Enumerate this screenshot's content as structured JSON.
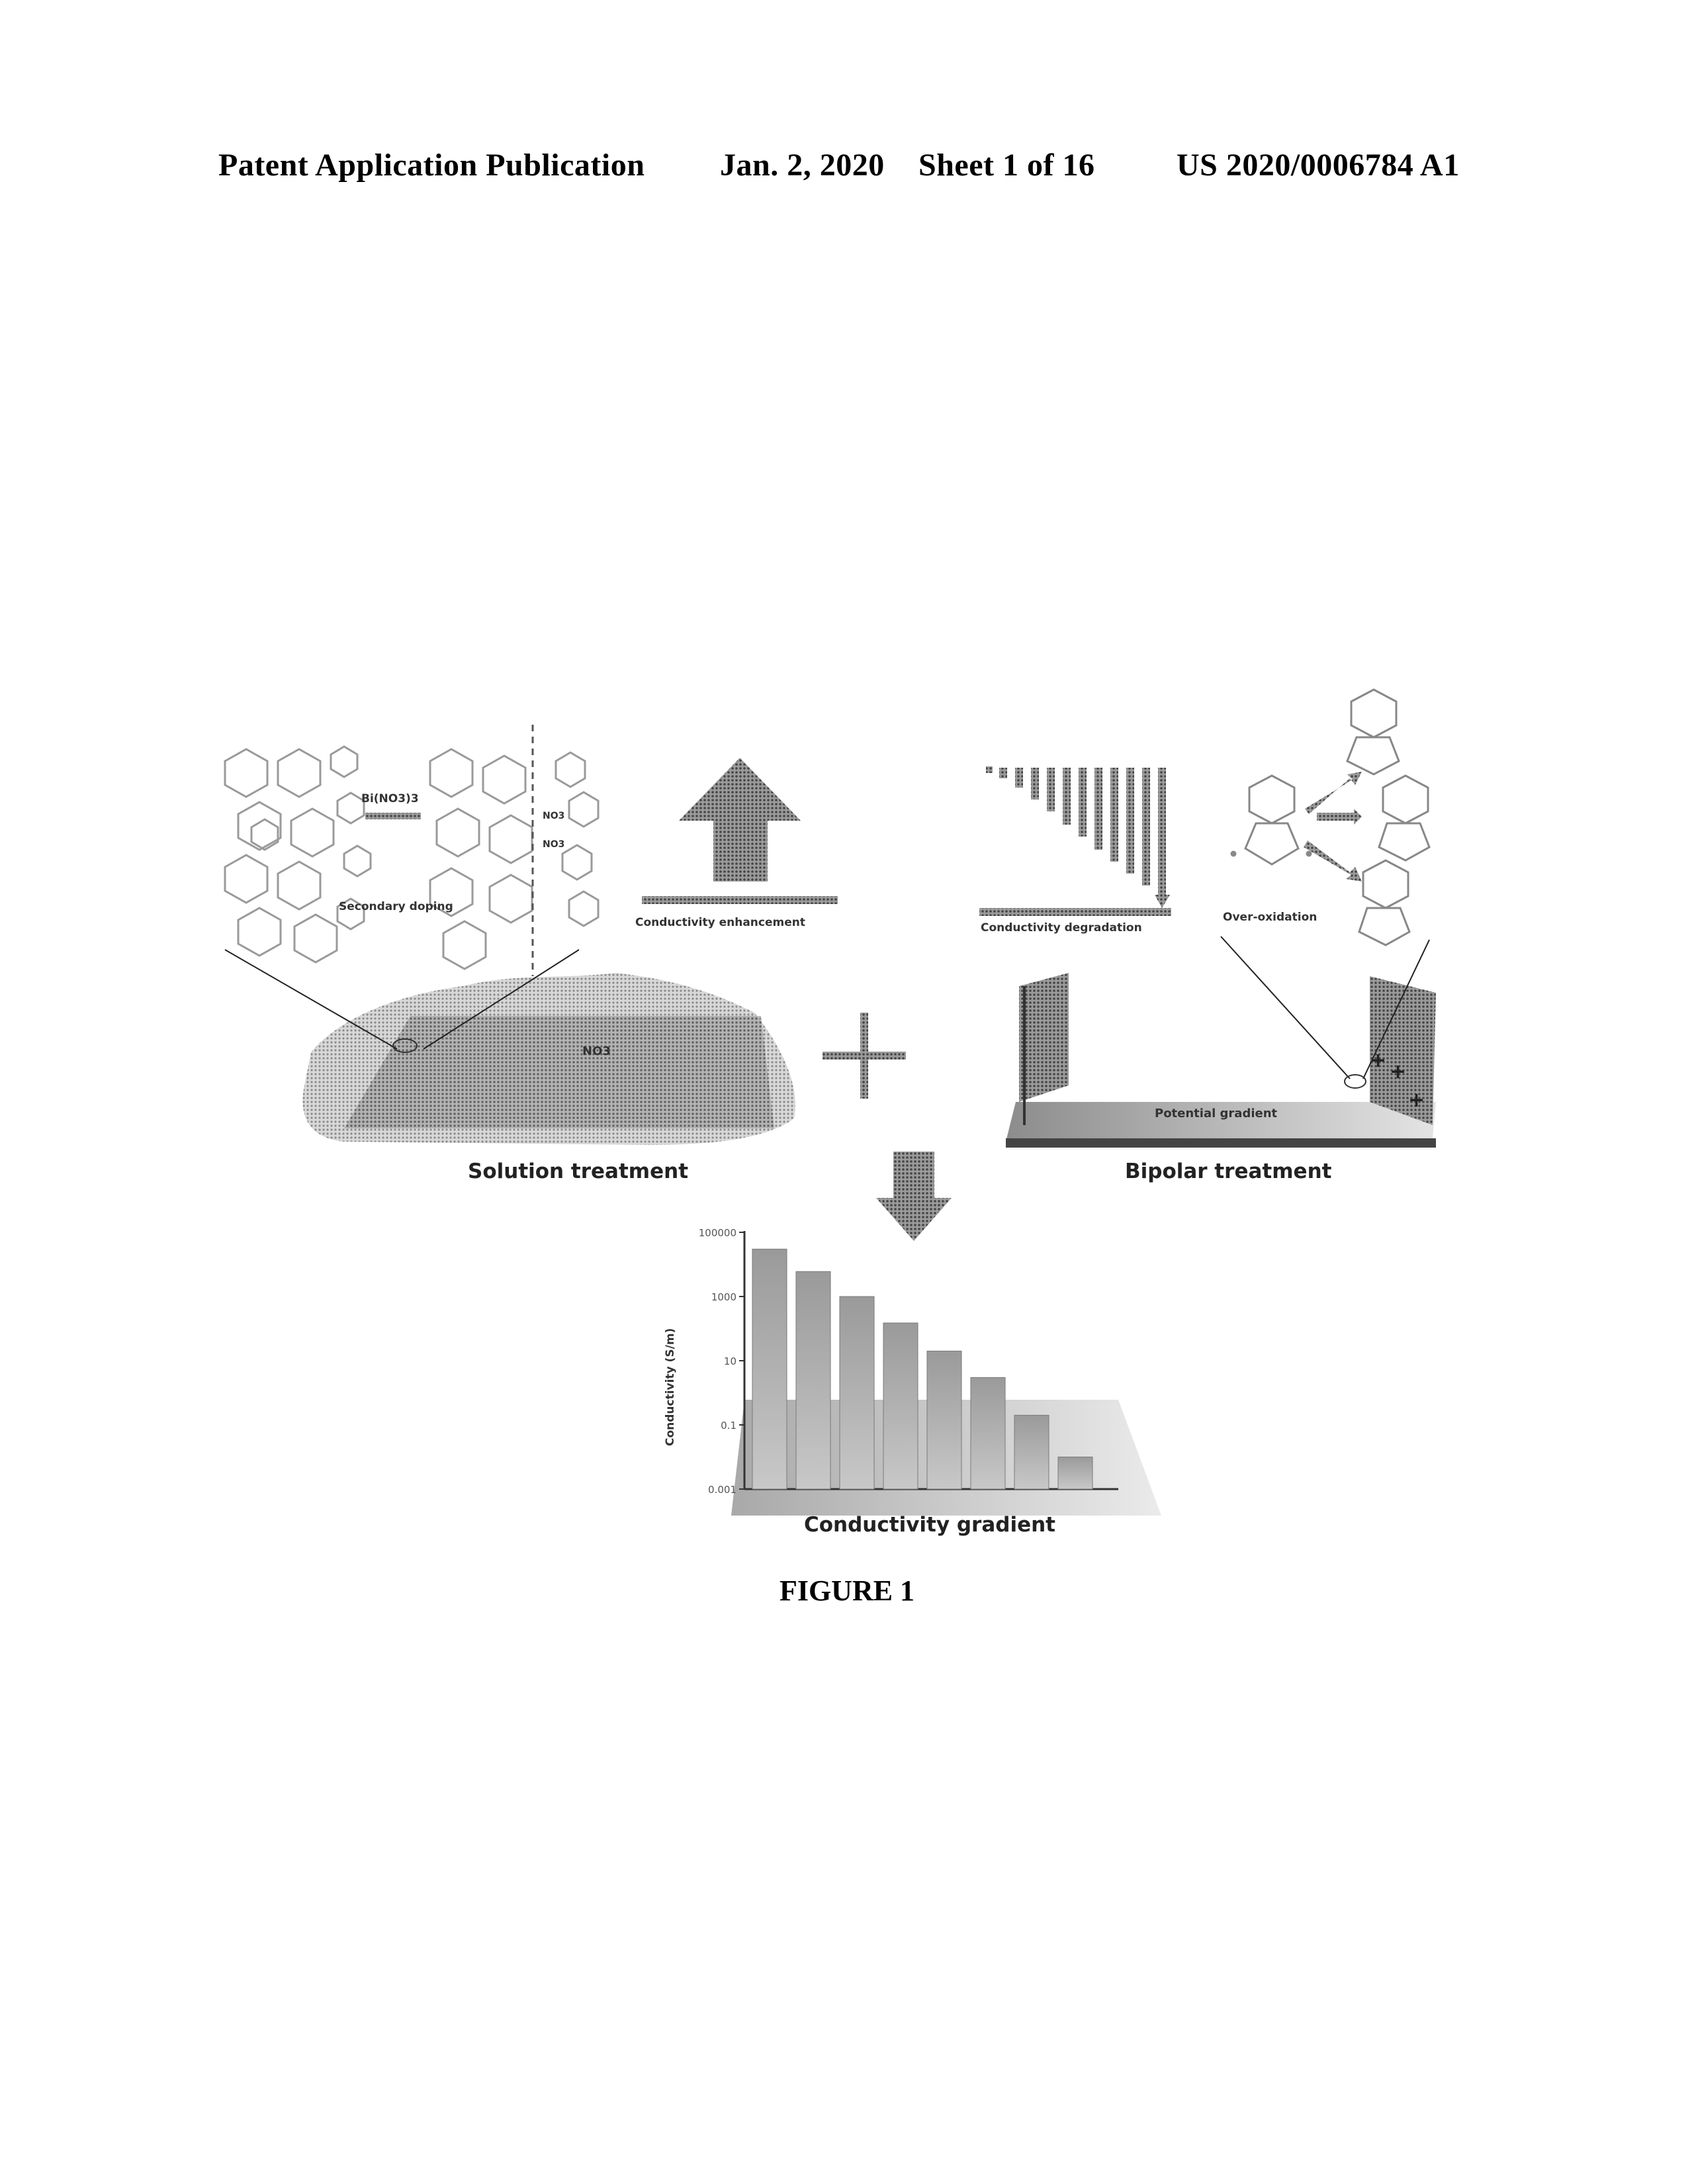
{
  "header": {
    "publication": "Patent Application Publication",
    "date": "Jan. 2, 2020",
    "sheet": "Sheet 1 of 16",
    "number": "US 2020/0006784 A1"
  },
  "figure": {
    "caption": "FIGURE 1",
    "labels": {
      "secondary_doping": "Secondary doping",
      "dopant": "Bi(NO3)3",
      "no3": "NO3",
      "conductivity_enhancement": "Conductivity enhancement",
      "conductivity_degradation": "Conductivity degradation",
      "over_oxidation": "Over-oxidation",
      "solution_treatment": "Solution treatment",
      "bipolar_treatment": "Bipolar treatment",
      "potential_gradient": "Potential gradient",
      "conductivity_gradient": "Conductivity gradient",
      "plus_sign": "+"
    }
  },
  "chart_data": {
    "type": "bar",
    "title": "",
    "ylabel": "Conductivity (S/m)",
    "xlabel": "",
    "yscale": "log",
    "yticks": [
      "100000",
      "1000",
      "10",
      "0.1",
      "0.001"
    ],
    "ylim": [
      0.001,
      100000
    ],
    "categories": [
      "",
      "",
      "",
      "",
      "",
      "",
      "",
      ""
    ],
    "values": [
      30000,
      6000,
      1000,
      150,
      20,
      3,
      0.2,
      0.01
    ],
    "color": "#9a9a9a"
  }
}
